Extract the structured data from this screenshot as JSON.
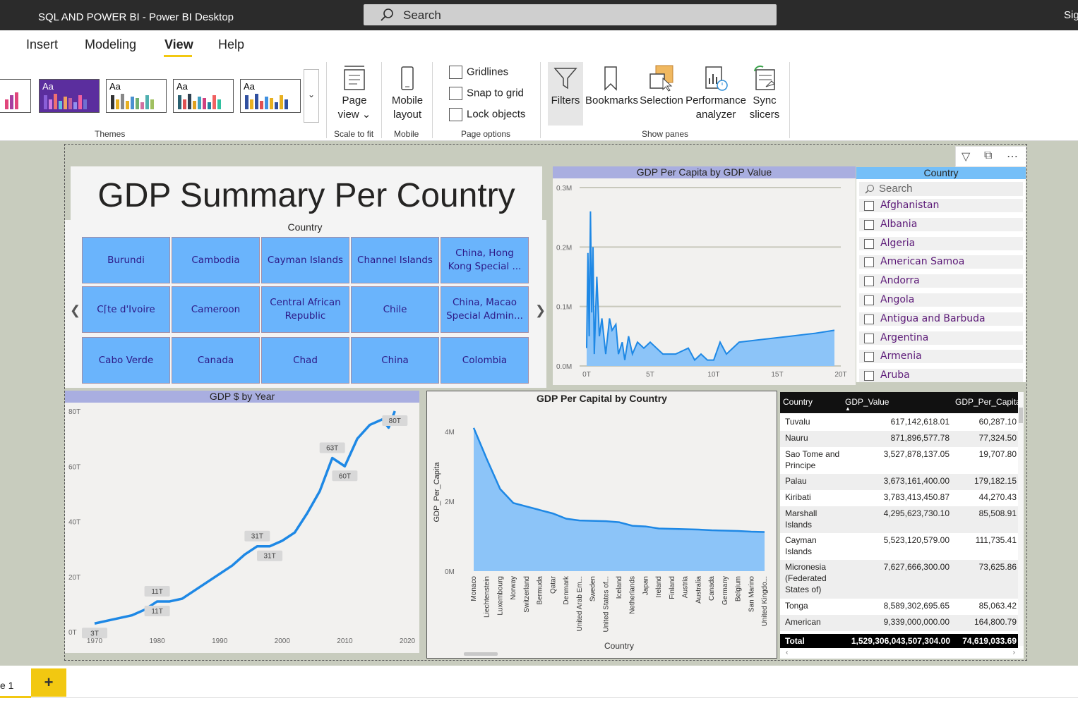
{
  "window": {
    "title": "SQL AND POWER BI - Power BI Desktop",
    "search_placeholder": "Search",
    "signin": "Sig"
  },
  "menu": {
    "items": [
      "Insert",
      "Modeling",
      "View",
      "Help"
    ],
    "active": "View"
  },
  "ribbon": {
    "themes_label": "Themes",
    "theme_sample": "Aa",
    "scale": {
      "label": "Page\nview",
      "group": "Scale to fit"
    },
    "mobile": {
      "label": "Mobile layout",
      "group": "Mobile"
    },
    "page_options": {
      "items": [
        "Gridlines",
        "Snap to grid",
        "Lock objects"
      ],
      "group": "Page options"
    },
    "show_panes": {
      "items": [
        "Filters",
        "Bookmarks",
        "Selection",
        "Performance analyzer",
        "Sync slicers"
      ],
      "group": "Show panes"
    }
  },
  "report": {
    "title": "GDP Summary Per Country",
    "tiles": {
      "header": "Country",
      "rows": [
        [
          "Burundi",
          "Cambodia",
          "Cayman Islands",
          "Channel Islands",
          "China, Hong Kong Special ..."
        ],
        [
          "C⌈te d'Ivoire",
          "Cameroon",
          "Central African Republic",
          "Chile",
          "China, Macao Special Admin..."
        ],
        [
          "Cabo Verde",
          "Canada",
          "Chad",
          "China",
          "Colombia"
        ]
      ]
    },
    "gdp_per_capita_by_value": {
      "title": "GDP Per Capita by GDP Value",
      "y_ticks": [
        "0.3M",
        "0.2M",
        "0.1M",
        "0.0M"
      ],
      "x_ticks": [
        "0T",
        "5T",
        "10T",
        "15T",
        "20T"
      ]
    },
    "slicer": {
      "title": "Country",
      "search": "Search",
      "items": [
        "Afghanistan",
        "Albania",
        "Algeria",
        "American Samoa",
        "Andorra",
        "Angola",
        "Antigua and Barbuda",
        "Argentina",
        "Armenia",
        "Aruba"
      ]
    },
    "gdp_by_year": {
      "title": "GDP $ by Year",
      "y_ticks": [
        "80T",
        "60T",
        "40T",
        "20T",
        "0T"
      ],
      "x_ticks": [
        "1970",
        "1980",
        "1990",
        "2000",
        "2010",
        "2020"
      ],
      "labels": [
        "3T",
        "11T",
        "11T",
        "31T",
        "31T",
        "63T",
        "60T",
        "80T"
      ]
    },
    "gdp_per_capital_by_country": {
      "title": "GDP Per Capital by Country",
      "ylabel": "GDP_Per_Capita",
      "xlabel": "Country",
      "y_ticks": [
        "4M",
        "2M",
        "0M"
      ]
    },
    "table": {
      "columns": [
        "Country",
        "GDP_Value",
        "GDP_Per_Capita"
      ],
      "rows": [
        [
          "Tuvalu",
          "617,142,618.01",
          "60,287.10"
        ],
        [
          "Nauru",
          "871,896,577.78",
          "77,324.50"
        ],
        [
          "Sao Tome and Principe",
          "3,527,878,137.05",
          "19,707.80"
        ],
        [
          "Palau",
          "3,673,161,400.00",
          "179,182.15"
        ],
        [
          "Kiribati",
          "3,783,413,450.87",
          "44,270.43"
        ],
        [
          "Marshall Islands",
          "4,295,623,730.10",
          "85,508.91"
        ],
        [
          "Cayman Islands",
          "5,523,120,579.00",
          "111,735.41"
        ],
        [
          "Micronesia (Federated States of)",
          "7,627,666,300.00",
          "73,625.86"
        ],
        [
          "Tonga",
          "8,589,302,695.65",
          "85,063.42"
        ],
        [
          "American",
          "9,339,000,000.00",
          "164,800.79"
        ]
      ],
      "total": [
        "Total",
        "1,529,306,043,507,304.00",
        "74,619,033.69"
      ]
    }
  },
  "pages": {
    "current": "e 1",
    "add": "+"
  },
  "chart_data": [
    {
      "type": "area",
      "title": "GDP Per Capita by GDP Value",
      "xlim": [
        0,
        20
      ],
      "ylim": [
        0,
        0.3
      ],
      "x_unit": "T",
      "y_unit": "M",
      "x": [
        0,
        0.1,
        0.2,
        0.3,
        0.4,
        0.5,
        0.6,
        0.8,
        1.0,
        1.2,
        1.5,
        1.8,
        2.0,
        2.3,
        2.5,
        2.8,
        3.0,
        3.3,
        3.6,
        4.0,
        4.5,
        5.0,
        6.0,
        7.0,
        8.0,
        8.5,
        9.0,
        9.5,
        10.0,
        10.5,
        11.0,
        12.0,
        14.0,
        16.0,
        18.0,
        19.5
      ],
      "values": [
        0.03,
        0.19,
        0.05,
        0.26,
        0.09,
        0.2,
        0.02,
        0.15,
        0.05,
        0.08,
        0.02,
        0.08,
        0.06,
        0.07,
        0.02,
        0.04,
        0.01,
        0.05,
        0.02,
        0.04,
        0.03,
        0.04,
        0.02,
        0.02,
        0.03,
        0.01,
        0.02,
        0.01,
        0.01,
        0.04,
        0.02,
        0.04,
        0.045,
        0.05,
        0.055,
        0.06
      ]
    },
    {
      "type": "line",
      "title": "GDP $ by Year",
      "xlim": [
        1970,
        2020
      ],
      "ylim": [
        0,
        80
      ],
      "y_unit": "T",
      "x": [
        1970,
        1972,
        1974,
        1976,
        1978,
        1980,
        1982,
        1984,
        1986,
        1988,
        1990,
        1992,
        1994,
        1996,
        1998,
        2000,
        2002,
        2004,
        2006,
        2008,
        2010,
        2012,
        2014,
        2016,
        2017,
        2018
      ],
      "values": [
        3,
        4,
        5,
        6,
        8,
        11,
        11,
        12,
        15,
        18,
        21,
        24,
        28,
        31,
        31,
        33,
        36,
        43,
        51,
        63,
        60,
        70,
        75,
        77,
        74,
        80
      ]
    },
    {
      "type": "area",
      "title": "GDP Per Capital by Country",
      "xlabel": "Country",
      "ylabel": "GDP_Per_Capita",
      "ylim": [
        0,
        4.5
      ],
      "y_unit": "M",
      "categories": [
        "Monaco",
        "Liechtenstein",
        "Luxembourg",
        "Norway",
        "Switzerland",
        "Bermuda",
        "Qatar",
        "Denmark",
        "United Arab Em...",
        "Sweden",
        "United States of...",
        "Iceland",
        "Netherlands",
        "Japan",
        "Ireland",
        "Finland",
        "Austria",
        "Australia",
        "Canada",
        "Germany",
        "Belgium",
        "San Marino",
        "United Kingdo..."
      ],
      "values": [
        4.1,
        3.2,
        2.35,
        1.95,
        1.85,
        1.75,
        1.65,
        1.5,
        1.45,
        1.44,
        1.43,
        1.4,
        1.3,
        1.28,
        1.22,
        1.21,
        1.2,
        1.19,
        1.17,
        1.16,
        1.15,
        1.13,
        1.12
      ]
    }
  ]
}
